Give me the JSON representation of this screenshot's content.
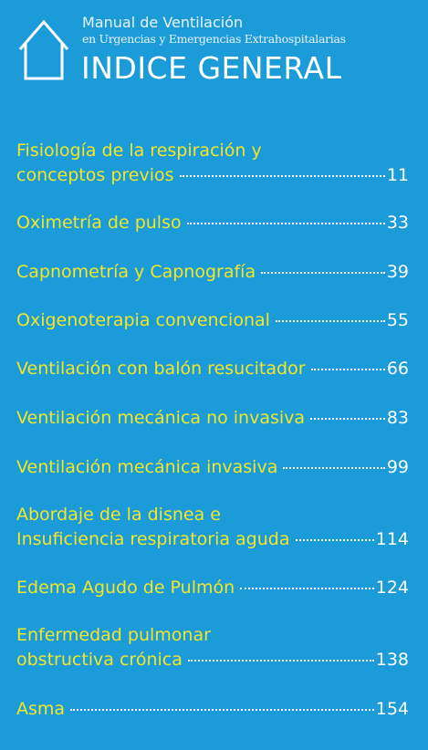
{
  "header": {
    "title": "Manual de Ventilación",
    "subtitle": "en Urgencias y Emergencias Extrahospitalarias",
    "heading": "INDICE GENERAL"
  },
  "entries": [
    {
      "lines": [
        "Fisiología de la respiración y",
        "conceptos previos"
      ],
      "page": "11"
    },
    {
      "lines": [
        "Oximetría de pulso"
      ],
      "page": "33"
    },
    {
      "lines": [
        "Capnometría y Capnografía"
      ],
      "page": "39"
    },
    {
      "lines": [
        "Oxigenoterapia convencional"
      ],
      "page": "55"
    },
    {
      "lines": [
        "Ventilación con balón resucitador"
      ],
      "page": "66"
    },
    {
      "lines": [
        "Ventilación mecánica no invasiva"
      ],
      "page": "83"
    },
    {
      "lines": [
        "Ventilación mecánica invasiva"
      ],
      "page": "99"
    },
    {
      "lines": [
        "Abordaje de la disnea e",
        "Insuficiencia respiratoria aguda"
      ],
      "page": "114"
    },
    {
      "lines": [
        "Edema Agudo de Pulmón"
      ],
      "page": "124"
    },
    {
      "lines": [
        "Enfermedad pulmonar",
        "obstructiva crónica"
      ],
      "page": "138"
    },
    {
      "lines": [
        "Asma"
      ],
      "page": "154"
    }
  ]
}
